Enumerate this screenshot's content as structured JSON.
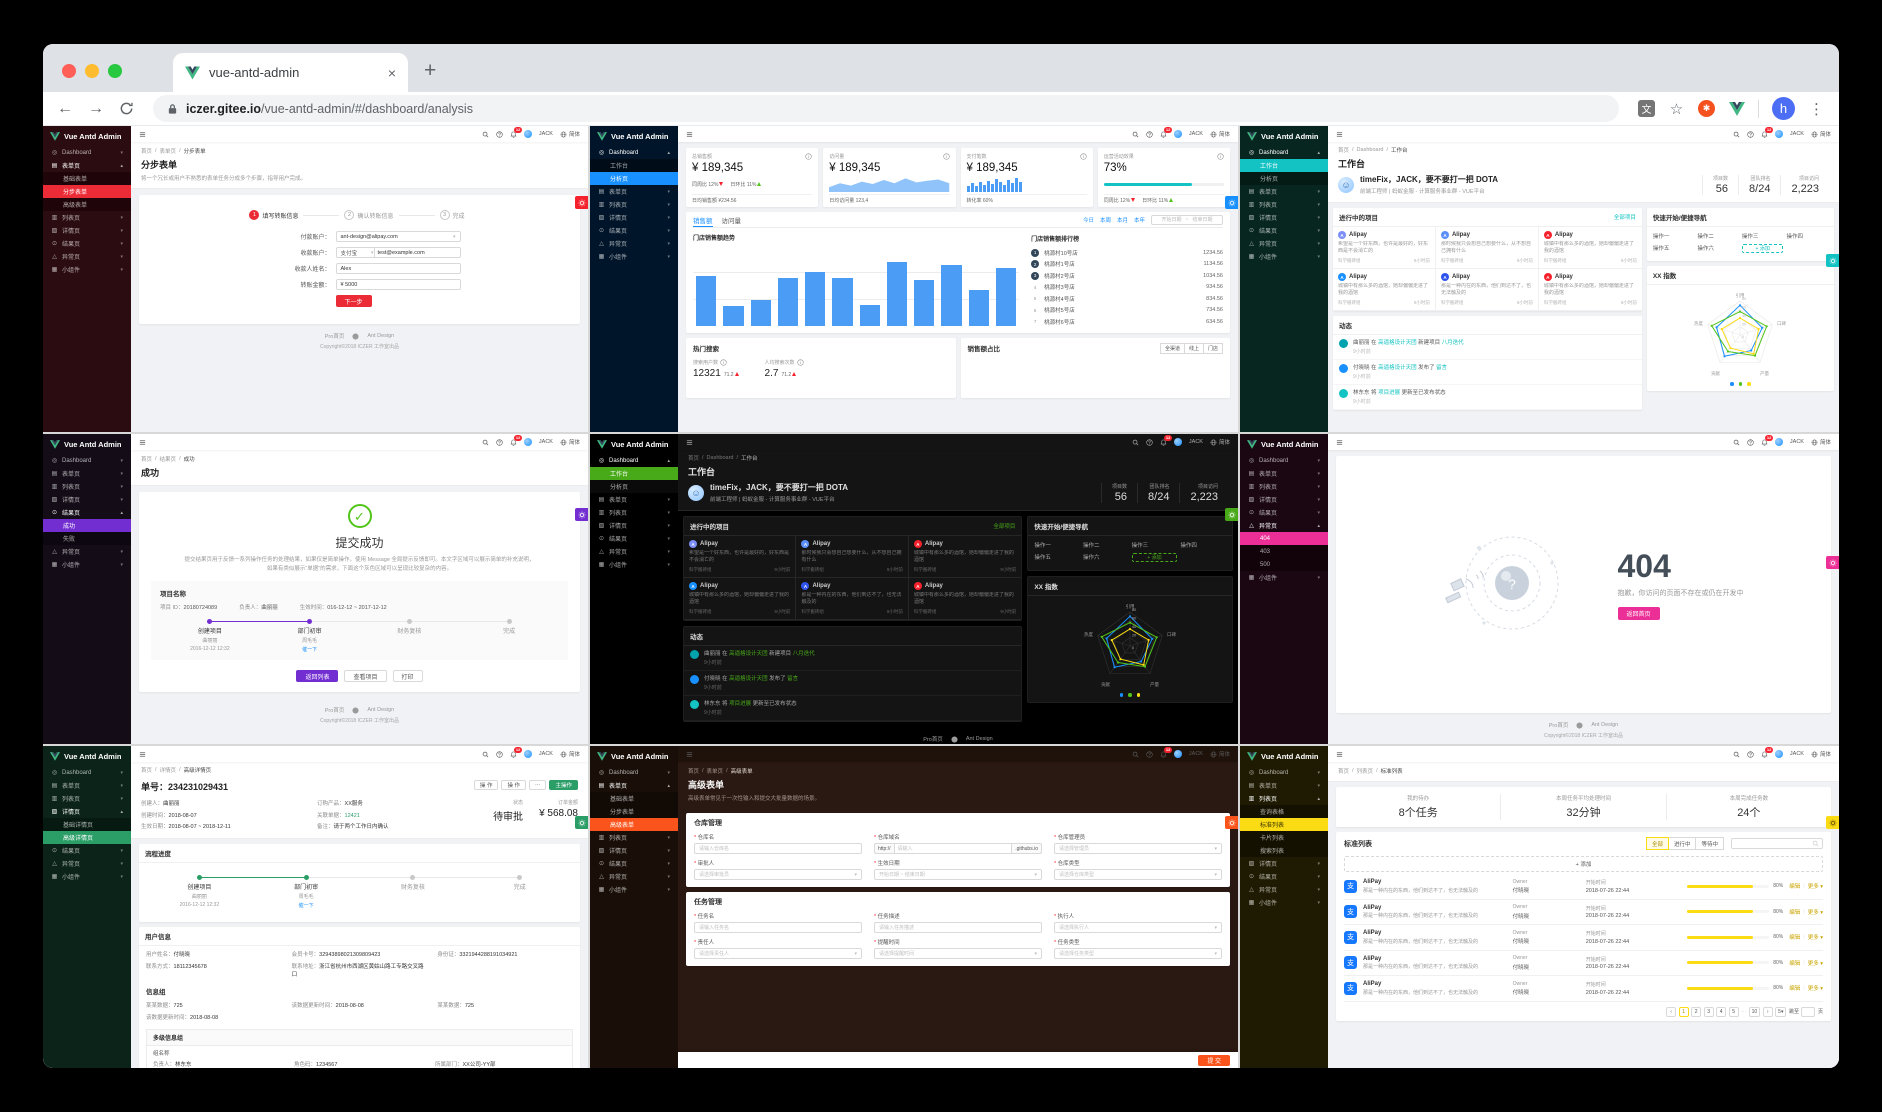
{
  "browser": {
    "tab_title": "vue-antd-admin",
    "new_tab": "+",
    "close_tab": "×",
    "url_host": "iczer.gitee.io",
    "url_path": "/vue-antd-admin/#/dashboard/analysis",
    "avatar": "h",
    "translate_ext": "文",
    "bookmark_star": "☆",
    "menu_dots": "⋮"
  },
  "common": {
    "logo": "Vue Antd Admin",
    "user": "JACK",
    "lang": "简体",
    "badge": "12",
    "footer_home": "Pro首页",
    "footer_brand": "Ant Design",
    "copyright": "Copyright©2018 ICZER 工作室出品",
    "base_menu": [
      {
        "label": "Dashboard",
        "icon": "dashboard"
      },
      {
        "label": "表单页",
        "icon": "form"
      },
      {
        "label": "列表页",
        "icon": "list"
      },
      {
        "label": "详情页",
        "icon": "profile"
      },
      {
        "label": "结果页",
        "icon": "result"
      },
      {
        "label": "异常页",
        "icon": "warning"
      },
      {
        "label": "小组件",
        "icon": "widget"
      }
    ]
  },
  "workplace": {
    "breadcrumb": [
      "首页",
      "Dashboard",
      "工作台"
    ],
    "title": "工作台",
    "greeting": "timeFix，JACK，要不要打一把 DOTA",
    "sub": "前端工程师 | 蚂蚁金服 - 计算服务事业群 - VUE平台",
    "stats": [
      {
        "label": "项目数",
        "value": "56"
      },
      {
        "label": "团队排名",
        "value": "8/24"
      },
      {
        "label": "项目访问",
        "value": "2,223"
      }
    ],
    "projects_title": "进行中的项目",
    "all_link": "全部项目",
    "projects": [
      {
        "name": "Alipay",
        "color": "#7c8ef7",
        "desc": "希望是一个好东西，也许是最好的，好东西是不会消亡的",
        "team": "科学搬砖组",
        "time": "9小时前"
      },
      {
        "name": "Alipay",
        "color": "#5b8ff9",
        "desc": "那时候我只会想自己想要什么，从不想自己拥有什么",
        "team": "科学搬砖组",
        "time": "9小时前"
      },
      {
        "name": "Alipay",
        "color": "#f5222d",
        "desc": "城镇中有那么多的酒馆，她却偏偏走进了我的酒馆",
        "team": "科学搬砖组",
        "time": "9小时前"
      },
      {
        "name": "Alipay",
        "color": "#1890ff",
        "desc": "城镇中有那么多的酒馆，她却偏偏走进了我的酒馆",
        "team": "科学搬砖组",
        "time": "9小时前"
      },
      {
        "name": "Alipay",
        "color": "#2f54eb",
        "desc": "那是一种内在的东西，他们到达不了，也无法触及的",
        "team": "科学搬砖组",
        "time": "9小时前"
      },
      {
        "name": "Alipay",
        "color": "#f5222d",
        "desc": "城镇中有那么多的酒馆，她却偏偏走进了我的酒馆",
        "team": "科学搬砖组",
        "time": "9小时前"
      }
    ],
    "quick_title": "快速开始/便捷导航",
    "ops": [
      "操作一",
      "操作二",
      "操作三",
      "操作四",
      "操作五",
      "操作六"
    ],
    "add": "+ 添加",
    "radar_title": "XX 指数",
    "feed_title": "动态",
    "feed": [
      {
        "color": "#00a2ae",
        "time": "9小时前",
        "segs": [
          {
            "t": "曲丽丽"
          },
          {
            "t": " 在 "
          },
          {
            "t": "高逼格设计天团",
            "link": true
          },
          {
            "t": " 新建项目 "
          },
          {
            "t": "八月迭代",
            "link": true
          }
        ]
      },
      {
        "color": "#1890ff",
        "time": "9小时前",
        "segs": [
          {
            "t": "付晓晓"
          },
          {
            "t": " 在 "
          },
          {
            "t": "高逼格设计天团",
            "link": true
          },
          {
            "t": " 发布了 "
          },
          {
            "t": "留言",
            "link": true
          }
        ]
      },
      {
        "color": "#13c2c2",
        "time": "9小时前",
        "segs": [
          {
            "t": "林东东"
          },
          {
            "t": " 将 "
          },
          {
            "t": "项目进展",
            "link": true
          },
          {
            "t": " 更新至已发布状态"
          }
        ]
      }
    ],
    "chart_data": {
      "type": "radar",
      "axes": [
        "引用",
        "口碑",
        "产量",
        "贡献",
        "热度"
      ],
      "rings": [
        20,
        40,
        60,
        80
      ],
      "series": [
        {
          "name": "series-blue",
          "color": "#1890ff",
          "values": [
            70,
            55,
            45,
            62,
            58
          ]
        },
        {
          "name": "series-green",
          "color": "#52c41a",
          "values": [
            55,
            66,
            60,
            48,
            70
          ]
        },
        {
          "name": "series-yellow",
          "color": "#fadb14",
          "values": [
            40,
            46,
            55,
            38,
            45
          ]
        }
      ]
    }
  },
  "flow_steps": [
    {
      "title": "创建项目",
      "sub1": "曲丽丽",
      "sub2": "2016-12-12 12:32",
      "state": "done"
    },
    {
      "title": "部门初审",
      "sub1": "周毛毛",
      "sub2": "催一下",
      "sub2_link": true,
      "state": "cur"
    },
    {
      "title": "财务复核",
      "state": "wait"
    },
    {
      "title": "完成",
      "state": "wait"
    }
  ],
  "panels": [
    {
      "id": "step-form",
      "type": "stepform",
      "theme": {
        "sb": "#2b0c10",
        "sub": "#1f0509",
        "ac": "#eb2b36",
        "content": "#f0f2f5",
        "gear": "#f5222d",
        "gearY": 70
      },
      "menu": {
        "open_index": 1,
        "children": [
          "基础表单",
          "分步表单",
          "高级表单"
        ],
        "active_child": "分步表单"
      },
      "breadcrumb": [
        "首页",
        "表单页",
        "分步表单"
      ],
      "title": "分步表单",
      "desc": "将一个冗长或用户不熟悉的表单任务分成多个步骤，指导用户完成。",
      "steps": [
        {
          "num": "1",
          "label": "填写转账信息",
          "on": true
        },
        {
          "num": "2",
          "label": "确认转账信息"
        },
        {
          "num": "3",
          "label": "完成"
        }
      ],
      "fields": [
        {
          "label": "付款账户：",
          "value": "ant-design@alipay.com",
          "select": true
        },
        {
          "label": "收款账户：",
          "prefix": "支付宝",
          "value": "test@example.com"
        },
        {
          "label": "收款人姓名：",
          "value": "Alex"
        },
        {
          "label": "转账金额：",
          "value": "¥ 5000"
        }
      ],
      "next_btn": "下一步",
      "show_footer": true
    },
    {
      "id": "analysis",
      "type": "analysis",
      "theme": {
        "sb": "#001529",
        "sub": "#000c17",
        "ac": "#1890ff",
        "content": "#f0f2f5",
        "gear": "#1890ff",
        "gearY": 70
      },
      "menu": {
        "open_index": 0,
        "children": [
          "工作台",
          "分析页"
        ],
        "active_child": "分析页"
      },
      "stat_cards": [
        {
          "title": "总销售额",
          "value": "¥ 189,345",
          "viz": "trend",
          "footer": "日均销售额 ¥234.56"
        },
        {
          "title": "访问量",
          "value": "¥ 189,345",
          "viz": "area",
          "footer": "日均访问量 123,4"
        },
        {
          "title": "支付笔数",
          "value": "¥ 189,345",
          "viz": "bars",
          "footer": "转化率 60%"
        },
        {
          "title": "运营活动效果",
          "value": "73%",
          "viz": "progress",
          "footer_trend": true
        }
      ],
      "trend": {
        "down_label": "同周比",
        "down": "12%",
        "up_label": "日环比",
        "up": "11%"
      },
      "progress_pct": 73,
      "mini_area": [
        30,
        55,
        40,
        65,
        50,
        75,
        55,
        85,
        60,
        70,
        78,
        55
      ],
      "mini_bars": [
        40,
        55,
        35,
        60,
        45,
        70,
        50,
        80,
        60,
        45,
        75,
        55,
        85,
        65
      ],
      "sales": {
        "tabs": [
          "销售额",
          "访问量"
        ],
        "ranges": [
          "今日",
          "本周",
          "本月",
          "本年"
        ],
        "date_start": "开始日期",
        "date_sep": "~",
        "date_end": "结束日期",
        "chart_title": "门店销售额趋势",
        "rank_title": "门店销售额排行榜",
        "ranks": [
          {
            "no": "1",
            "name": "桃源村10号店",
            "value": "1234.56",
            "top": true
          },
          {
            "no": "2",
            "name": "桃源村1号店",
            "value": "1134.56",
            "top": true
          },
          {
            "no": "3",
            "name": "桃源村2号店",
            "value": "1034.56",
            "top": true
          },
          {
            "no": "4",
            "name": "桃源村3号店",
            "value": "934.56"
          },
          {
            "no": "5",
            "name": "桃源村4号店",
            "value": "834.56"
          },
          {
            "no": "6",
            "name": "桃源村5号店",
            "value": "734.56"
          },
          {
            "no": "7",
            "name": "桃源村6号店",
            "value": "634.56"
          }
        ]
      },
      "chart_data": {
        "type": "bar",
        "title": "门店销售额趋势",
        "values": [
          62,
          25,
          33,
          60,
          67,
          60,
          26,
          80,
          57,
          76,
          45,
          72
        ],
        "color": "#4b9cf4"
      },
      "hot": {
        "title": "热门搜索",
        "metrics": [
          {
            "label": "搜索用户数",
            "value": "12321",
            "sub": "71.2"
          },
          {
            "label": "人均搜索次数",
            "value": "2.7",
            "sub": "71.2"
          }
        ]
      },
      "share": {
        "title": "销售额占比",
        "buttons": [
          "全渠道",
          "线上",
          "门店"
        ]
      }
    },
    {
      "id": "workplace-light",
      "type": "workplace",
      "use": "workplace",
      "theme": {
        "sb": "#07261f",
        "sub": "#041a15",
        "ac": "#13c2c2",
        "content": "#f0f2f5",
        "gear": "#13c2c2",
        "gearY": 128
      },
      "menu": {
        "open_index": 0,
        "children": [
          "工作台",
          "分析页"
        ],
        "active_child": "工作台"
      }
    },
    {
      "id": "success",
      "type": "success",
      "theme": {
        "sb": "#140d18",
        "sub": "#0c0710",
        "ac": "#722ed1",
        "content": "#f0f2f5",
        "gear": "#722ed1",
        "gearY": 74
      },
      "menu": {
        "open_index": 4,
        "children": [
          "成功",
          "失败"
        ],
        "active_child": "成功"
      },
      "breadcrumb": [
        "首页",
        "结果页",
        "成功"
      ],
      "title": "成功",
      "result_title": "提交成功",
      "result_desc": "提交结果页用于反馈一系列操作任务的处理结果，如果仅是简单操作，使用 Message 全局提示反馈即可。本文字区域可以展示简单的补充说明，如果有类似展示“单据”的需求，下面这个灰色区域可以呈现比较复杂的内容。",
      "box_title": "项目名称",
      "box_fields": [
        {
          "label": "项目 ID：",
          "value": "20180724089"
        },
        {
          "label": "负责人：",
          "value": "曲丽丽"
        },
        {
          "label": "生效时间：",
          "value": "016-12-12 ~ 2017-12-12"
        }
      ],
      "buttons": [
        {
          "label": "返回列表",
          "primary": true
        },
        {
          "label": "查看项目"
        },
        {
          "label": "打印"
        }
      ],
      "show_footer": true
    },
    {
      "id": "workplace-dark",
      "type": "workplace",
      "use": "workplace",
      "theme": {
        "dark": true,
        "sb": "#000000",
        "sub": "#0a0a0a",
        "ac": "#49aa19",
        "content": "#000000",
        "topbar": "#141414",
        "gear": "#49aa19",
        "gearY": 74
      },
      "menu": {
        "open_index": 0,
        "children": [
          "工作台",
          "分析页"
        ],
        "active_child": "工作台"
      },
      "show_footer": true
    },
    {
      "id": "error-404",
      "type": "err404",
      "theme": {
        "sb": "#1b0712",
        "sub": "#12030b",
        "ac": "#eb2f96",
        "content": "#f0f2f5",
        "gear": "#eb2f96",
        "gearY": 122
      },
      "menu": {
        "open_index": 5,
        "children": [
          "404",
          "403",
          "500"
        ],
        "active_child": "404"
      },
      "code": "404",
      "message": "抱歉，你访问的页面不存在或仍在开发中",
      "back_btn": "返回首页",
      "show_footer": true
    },
    {
      "id": "detail-advanced",
      "type": "detail",
      "theme": {
        "sb": "#0b2318",
        "sub": "#061a11",
        "ac": "#2b9e68",
        "content": "#f0f2f5",
        "gear": "#2b9e68",
        "gearY": 70
      },
      "menu": {
        "open_index": 3,
        "children": [
          "基础详情页",
          "高级详情页"
        ],
        "active_child": "高级详情页"
      },
      "breadcrumb": [
        "首页",
        "详情页",
        "高级详情页"
      ],
      "title": "单号：234231029431",
      "actions": [
        {
          "label": "操 作"
        },
        {
          "label": "操 作"
        },
        {
          "label": "···"
        },
        {
          "label": "主操作",
          "primary": true
        }
      ],
      "desc_left": [
        {
          "label": "创建人：",
          "value": "曲丽丽"
        },
        {
          "label": "创建时间：",
          "value": "2018-08-07"
        },
        {
          "label": "生效日期：",
          "value": "2018-08-07 ~ 2018-12-11"
        }
      ],
      "desc_mid": [
        {
          "label": "订购产品：",
          "value": "XX服务"
        },
        {
          "label": "关联单据：",
          "value": "12421",
          "link": true
        },
        {
          "label": "备注：",
          "value": "请于两个工作日内确认"
        }
      ],
      "status_label": "状态",
      "status_value": "待审批",
      "amount_label": "订单金额",
      "amount_value": "¥ 568.08",
      "flow_title": "流程进度",
      "user_title": "用户信息",
      "user_rows": [
        {
          "label": "用户姓名：",
          "value": "付晓晓"
        },
        {
          "label": "会员卡号：",
          "value": "32943898021309809423"
        },
        {
          "label": "身份证：",
          "value": "3321944288191034921"
        },
        {
          "label": "联系方式：",
          "value": "18112345678"
        },
        {
          "label": "联系地址：",
          "value": "浙江省杭州市西湖区黄姑山路工专路交叉路口"
        }
      ],
      "group_title": "信息组",
      "group_rows": [
        {
          "label": "某某数据：",
          "value": "725"
        },
        {
          "label": "该数据更新时间：",
          "value": "2018-08-08"
        },
        {
          "label": "某某数据：",
          "value": "725"
        },
        {
          "label": "该数据更新时间：",
          "value": "2018-08-08"
        }
      ],
      "multi_title": "多级信息组",
      "multi_group": "组名称",
      "multi_rows": [
        {
          "label": "负责人：",
          "value": "林东东"
        },
        {
          "label": "角色码：",
          "value": "1234567"
        },
        {
          "label": "所属部门：",
          "value": "XX公司-YY部"
        }
      ]
    },
    {
      "id": "form-advanced",
      "type": "advform",
      "theme": {
        "sb": "#190f08",
        "sub": "#110a05",
        "ac": "#fa541c",
        "content": "#2a1812",
        "topbar": "#1f120b",
        "headDark": true,
        "gear": "#fa541c",
        "gearY": 70
      },
      "menu": {
        "open_index": 1,
        "children": [
          "基础表单",
          "分步表单",
          "高级表单"
        ],
        "active_child": "高级表单"
      },
      "breadcrumb": [
        "首页",
        "表单页",
        "高级表单"
      ],
      "title": "高级表单",
      "desc": "高级表单常见于一次性输入和提交大批量数据的场景。",
      "cards": [
        {
          "title": "仓库管理",
          "fields": [
            {
              "label": "仓库名",
              "ph": "请输入仓库名"
            },
            {
              "label": "仓库域名",
              "pre": "http://",
              "ph": "请输入",
              "suf": ".githubs.io"
            },
            {
              "label": "仓库管理员",
              "ph": "请选择管理员",
              "select": true
            },
            {
              "label": "审批人",
              "ph": "请选择审批员",
              "select": true
            },
            {
              "label": "生效日期",
              "ph": "开始日期 ~ 结束日期",
              "date": true
            },
            {
              "label": "仓库类型",
              "ph": "请选择仓库类型",
              "select": true
            }
          ]
        },
        {
          "title": "任务管理",
          "fields": [
            {
              "label": "任务名",
              "ph": "请输入任务名"
            },
            {
              "label": "任务描述",
              "ph": "请输入任务描述"
            },
            {
              "label": "执行人",
              "ph": "请选择执行人",
              "select": true
            },
            {
              "label": "责任人",
              "ph": "请选择责任人",
              "select": true
            },
            {
              "label": "提醒时间",
              "ph": "请选择提醒时间",
              "select": true
            },
            {
              "label": "任务类型",
              "ph": "请选择任务类型",
              "select": true
            }
          ]
        }
      ],
      "submit": "提 交"
    },
    {
      "id": "list-standard",
      "type": "stdlist",
      "theme": {
        "sb": "#1f1b02",
        "sub": "#141100",
        "ac": "#fadb14",
        "acText": "#3b3300",
        "content": "#f0f2f5",
        "gear": "#fadb14",
        "gearText": "#614700",
        "gearY": 70
      },
      "menu": {
        "open_index": 2,
        "children": [
          "查询表格",
          "标准列表",
          "卡片列表",
          "搜索列表"
        ],
        "active_child": "标准列表"
      },
      "breadcrumb": [
        "首页",
        "列表页",
        "标准列表"
      ],
      "stats": [
        {
          "label": "我的待办",
          "value": "8个任务"
        },
        {
          "label": "本周任务平均处理时间",
          "value": "32分钟"
        },
        {
          "label": "本周完成任务数",
          "value": "24个"
        }
      ],
      "list_title": "标准列表",
      "filters": [
        "全部",
        "进行中",
        "等待中"
      ],
      "add_btn": "+ 添加",
      "row_count": 5,
      "row": {
        "name": "AliPay",
        "icon_char": "支",
        "desc": "那是一种内在的东西，他们到达不了，也无法触及的",
        "owner_label": "Owner",
        "owner": "付晓晓",
        "time_label": "开始时间",
        "time": "2018-07-26 22:44",
        "pct": 80,
        "pct_label": "80%",
        "edit": "编辑",
        "more": "更多"
      },
      "pages": [
        "1",
        "2",
        "3",
        "4",
        "5",
        "···",
        "10"
      ],
      "active_page": "1",
      "per_page": "5",
      "jump_pre": "跳至",
      "jump_suf": "页"
    }
  ]
}
